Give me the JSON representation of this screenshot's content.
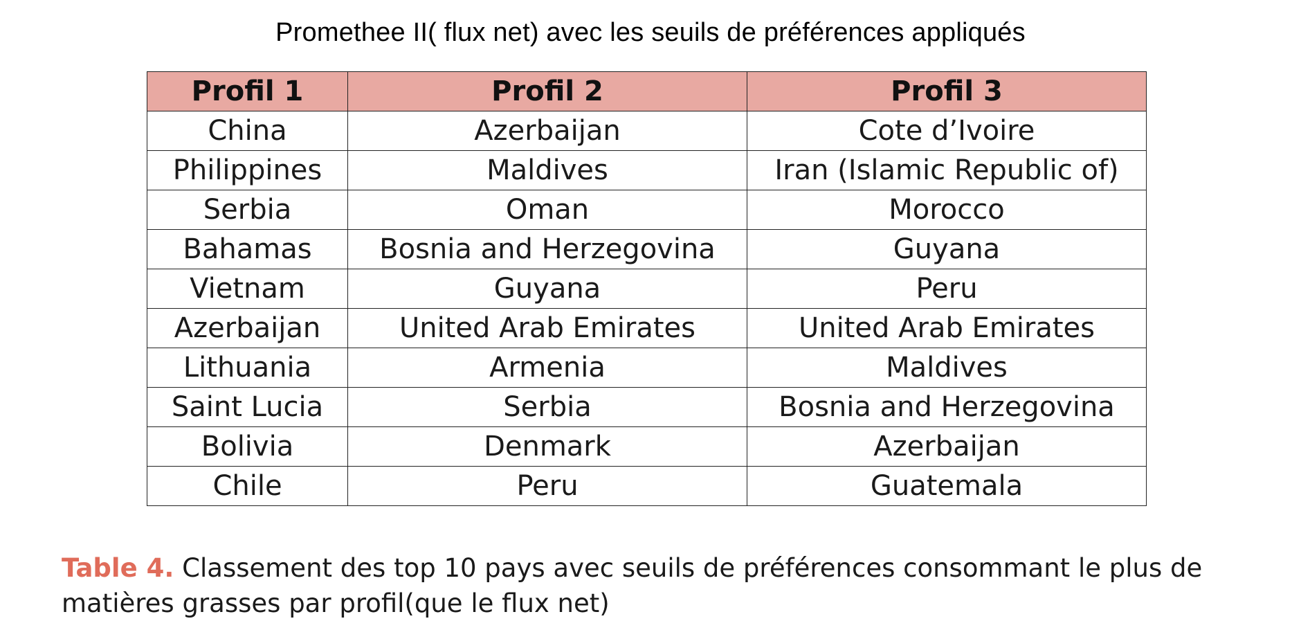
{
  "title": "Promethee II( flux net) avec les seuils de préférences appliqués",
  "table": {
    "headers": [
      "Profil 1",
      "Profil 2",
      "Profil 3"
    ],
    "rows": [
      [
        "China",
        "Azerbaijan",
        "Cote d’Ivoire"
      ],
      [
        "Philippines",
        "Maldives",
        "Iran (Islamic Republic of)"
      ],
      [
        "Serbia",
        "Oman",
        "Morocco"
      ],
      [
        "Bahamas",
        "Bosnia and Herzegovina",
        "Guyana"
      ],
      [
        "Vietnam",
        "Guyana",
        "Peru"
      ],
      [
        "Azerbaijan",
        "United Arab Emirates",
        "United Arab Emirates"
      ],
      [
        "Lithuania",
        "Armenia",
        "Maldives"
      ],
      [
        "Saint Lucia",
        "Serbia",
        "Bosnia and Herzegovina"
      ],
      [
        "Bolivia",
        "Denmark",
        "Azerbaijan"
      ],
      [
        "Chile",
        "Peru",
        "Guatemala"
      ]
    ]
  },
  "caption": {
    "label": "Table 4.",
    "text": " Classement des top 10 pays avec seuils de préférences consommant le plus de matières grasses par profil(que le flux net)"
  },
  "colors": {
    "header_bg": "#e8a9a2",
    "caption_label": "#e06c5a"
  }
}
